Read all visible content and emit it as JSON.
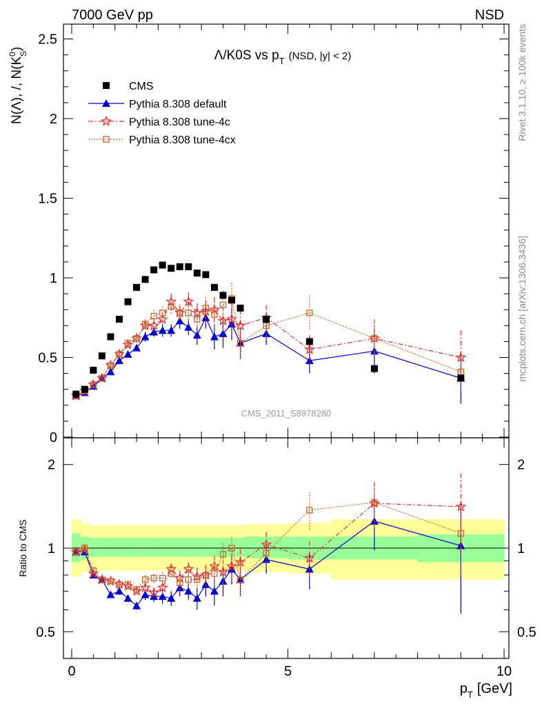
{
  "header": {
    "left": "7000 GeV pp",
    "right": "NSD"
  },
  "side_labels": {
    "rivet": "Rivet 3.1.10, ≥ 100k events",
    "mcplots": "mcplots.cern.ch [arXiv:1306.3436]"
  },
  "chart_data": [
    {
      "type": "scatter",
      "panel": "main",
      "title_main": "Λ/K0S vs p",
      "title_sub": "T",
      "title_extra": "(NSD, |y| < 2)",
      "ylabel_main": "N(Λ), /, N(K",
      "ylabel_sup": "0",
      "ylabel_sub": "S",
      "ylabel_end": ")",
      "watermark": "CMS_2011_S8978280",
      "xlim": [
        0,
        10
      ],
      "ylim": [
        0,
        2.6
      ],
      "yticks": [
        0,
        0.5,
        1,
        1.5,
        2,
        2.5
      ],
      "ytick_labels": [
        "0",
        "0.5",
        "1",
        "1.5",
        "2",
        "2.5"
      ],
      "series": [
        {
          "name": "CMS",
          "color": "#000000",
          "x": [
            0.1,
            0.3,
            0.5,
            0.7,
            0.9,
            1.1,
            1.3,
            1.5,
            1.7,
            1.9,
            2.1,
            2.3,
            2.5,
            2.7,
            2.9,
            3.1,
            3.3,
            3.5,
            3.7,
            3.9,
            4.5,
            5.5,
            7.0,
            9.0
          ],
          "y": [
            0.27,
            0.3,
            0.42,
            0.51,
            0.63,
            0.74,
            0.85,
            0.94,
            0.99,
            1.05,
            1.08,
            1.06,
            1.07,
            1.07,
            1.03,
            1.02,
            0.94,
            0.89,
            0.86,
            0.81,
            0.74,
            0.6,
            0.43,
            0.37
          ]
        },
        {
          "name": "Pythia 8.308 default",
          "color": "#0000cc",
          "x": [
            0.1,
            0.3,
            0.5,
            0.7,
            0.9,
            1.1,
            1.3,
            1.5,
            1.7,
            1.9,
            2.1,
            2.3,
            2.5,
            2.7,
            2.9,
            3.1,
            3.3,
            3.5,
            3.7,
            3.9,
            4.5,
            5.5,
            7.0,
            9.0
          ],
          "y": [
            0.26,
            0.28,
            0.32,
            0.37,
            0.41,
            0.48,
            0.52,
            0.56,
            0.63,
            0.66,
            0.67,
            0.67,
            0.73,
            0.69,
            0.64,
            0.75,
            0.63,
            0.65,
            0.71,
            0.59,
            0.65,
            0.48,
            0.54,
            0.37
          ],
          "err": [
            0.01,
            0.01,
            0.01,
            0.01,
            0.01,
            0.01,
            0.02,
            0.02,
            0.03,
            0.03,
            0.04,
            0.04,
            0.05,
            0.05,
            0.06,
            0.07,
            0.08,
            0.09,
            0.1,
            0.1,
            0.07,
            0.08,
            0.14,
            0.16
          ]
        },
        {
          "name": "Pythia 8.308 tune-4c",
          "color": "#e03030",
          "x": [
            0.1,
            0.3,
            0.5,
            0.7,
            0.9,
            1.1,
            1.3,
            1.5,
            1.7,
            1.9,
            2.1,
            2.3,
            2.5,
            2.7,
            2.9,
            3.1,
            3.3,
            3.5,
            3.7,
            3.9,
            4.5,
            5.5,
            7.0,
            9.0
          ],
          "y": [
            0.26,
            0.29,
            0.33,
            0.37,
            0.45,
            0.52,
            0.58,
            0.62,
            0.7,
            0.7,
            0.74,
            0.85,
            0.78,
            0.85,
            0.78,
            0.79,
            0.8,
            0.73,
            0.74,
            0.7,
            0.75,
            0.55,
            0.62,
            0.5
          ],
          "err": [
            0.01,
            0.01,
            0.01,
            0.01,
            0.01,
            0.02,
            0.02,
            0.03,
            0.03,
            0.04,
            0.04,
            0.05,
            0.05,
            0.06,
            0.06,
            0.07,
            0.08,
            0.09,
            0.1,
            0.1,
            0.08,
            0.09,
            0.12,
            0.17
          ]
        },
        {
          "name": "Pythia 8.308 tune-4cx",
          "color": "#c86428",
          "x": [
            0.1,
            0.3,
            0.5,
            0.7,
            0.9,
            1.1,
            1.3,
            1.5,
            1.7,
            1.9,
            2.1,
            2.3,
            2.5,
            2.7,
            2.9,
            3.1,
            3.3,
            3.5,
            3.7,
            3.9,
            4.5,
            5.5,
            7.0,
            9.0
          ],
          "y": [
            0.26,
            0.29,
            0.33,
            0.37,
            0.45,
            0.52,
            0.59,
            0.62,
            0.71,
            0.76,
            0.78,
            0.82,
            0.78,
            0.78,
            0.74,
            0.81,
            0.77,
            0.83,
            0.87,
            0.59,
            0.7,
            0.78,
            0.62,
            0.41
          ],
          "err": [
            0.01,
            0.01,
            0.01,
            0.01,
            0.01,
            0.02,
            0.02,
            0.03,
            0.03,
            0.04,
            0.04,
            0.05,
            0.05,
            0.06,
            0.06,
            0.07,
            0.08,
            0.09,
            0.1,
            0.1,
            0.08,
            0.11,
            0.1,
            0.12
          ]
        }
      ]
    },
    {
      "type": "scatter",
      "panel": "ratio",
      "ylabel": "Ratio to CMS",
      "xlabel": "p",
      "xlabel_sub": "T",
      "xlabel_unit": "[GeV]",
      "xlim": [
        0,
        10
      ],
      "xticks": [
        0,
        5,
        10
      ],
      "xtick_labels": [
        "0",
        "5",
        "10"
      ],
      "ylim": [
        0.4,
        2.4
      ],
      "yscale": "log",
      "yticks": [
        0.5,
        1,
        2
      ],
      "ytick_labels": [
        "0.5",
        "1",
        "2"
      ],
      "bands": {
        "x_edges": [
          0,
          0.2,
          0.4,
          0.6,
          0.8,
          1.0,
          1.2,
          1.4,
          1.6,
          1.8,
          2.0,
          2.2,
          2.4,
          2.6,
          2.8,
          3.0,
          3.2,
          3.4,
          3.6,
          3.8,
          4.0,
          5.0,
          6.0,
          8.0,
          10.0
        ],
        "inner_lo": [
          0.89,
          0.91,
          0.93,
          0.93,
          0.93,
          0.93,
          0.93,
          0.93,
          0.93,
          0.93,
          0.93,
          0.93,
          0.93,
          0.93,
          0.93,
          0.93,
          0.93,
          0.93,
          0.93,
          0.93,
          0.92,
          0.91,
          0.91,
          0.89
        ],
        "inner_hi": [
          1.13,
          1.1,
          1.09,
          1.09,
          1.09,
          1.09,
          1.09,
          1.09,
          1.09,
          1.09,
          1.09,
          1.09,
          1.09,
          1.09,
          1.09,
          1.09,
          1.09,
          1.09,
          1.09,
          1.09,
          1.1,
          1.1,
          1.1,
          1.12
        ],
        "outer_lo": [
          0.79,
          0.82,
          0.83,
          0.83,
          0.83,
          0.83,
          0.83,
          0.83,
          0.83,
          0.83,
          0.83,
          0.83,
          0.83,
          0.83,
          0.83,
          0.83,
          0.83,
          0.83,
          0.83,
          0.83,
          0.82,
          0.81,
          0.77,
          0.77
        ],
        "outer_hi": [
          1.27,
          1.23,
          1.21,
          1.21,
          1.21,
          1.21,
          1.21,
          1.21,
          1.21,
          1.21,
          1.21,
          1.21,
          1.21,
          1.21,
          1.21,
          1.21,
          1.21,
          1.21,
          1.21,
          1.21,
          1.22,
          1.23,
          1.27,
          1.27
        ]
      },
      "series": [
        {
          "name": "Pythia 8.308 default",
          "color": "#0000cc",
          "x": [
            0.1,
            0.3,
            0.5,
            0.7,
            0.9,
            1.1,
            1.3,
            1.5,
            1.7,
            1.9,
            2.1,
            2.3,
            2.5,
            2.7,
            2.9,
            3.1,
            3.3,
            3.5,
            3.7,
            3.9,
            4.5,
            5.5,
            7.0,
            9.0
          ],
          "y": [
            0.97,
            0.97,
            0.8,
            0.77,
            0.68,
            0.7,
            0.66,
            0.62,
            0.68,
            0.67,
            0.67,
            0.66,
            0.72,
            0.7,
            0.66,
            0.74,
            0.7,
            0.76,
            0.84,
            0.77,
            0.91,
            0.84,
            1.25,
            1.02
          ],
          "err": [
            0.01,
            0.01,
            0.01,
            0.01,
            0.01,
            0.02,
            0.02,
            0.02,
            0.03,
            0.03,
            0.04,
            0.04,
            0.05,
            0.05,
            0.06,
            0.07,
            0.08,
            0.09,
            0.1,
            0.1,
            0.1,
            0.13,
            0.27,
            0.44
          ]
        },
        {
          "name": "Pythia 8.308 tune-4c",
          "color": "#e03030",
          "x": [
            0.1,
            0.3,
            0.5,
            0.7,
            0.9,
            1.1,
            1.3,
            1.5,
            1.7,
            1.9,
            2.1,
            2.3,
            2.5,
            2.7,
            2.9,
            3.1,
            3.3,
            3.5,
            3.7,
            3.9,
            4.5,
            5.5,
            7.0,
            9.0
          ],
          "y": [
            0.97,
            0.99,
            0.81,
            0.77,
            0.76,
            0.74,
            0.73,
            0.7,
            0.72,
            0.69,
            0.72,
            0.84,
            0.78,
            0.84,
            0.79,
            0.8,
            0.86,
            0.82,
            0.86,
            0.89,
            1.03,
            0.92,
            1.45,
            1.41
          ],
          "err": [
            0.01,
            0.01,
            0.01,
            0.01,
            0.01,
            0.02,
            0.02,
            0.02,
            0.03,
            0.03,
            0.04,
            0.04,
            0.05,
            0.05,
            0.06,
            0.07,
            0.08,
            0.09,
            0.1,
            0.1,
            0.11,
            0.14,
            0.28,
            0.45
          ]
        },
        {
          "name": "Pythia 8.308 tune-4cx",
          "color": "#c86428",
          "x": [
            0.1,
            0.3,
            0.5,
            0.7,
            0.9,
            1.1,
            1.3,
            1.5,
            1.7,
            1.9,
            2.1,
            2.3,
            2.5,
            2.7,
            2.9,
            3.1,
            3.3,
            3.5,
            3.7,
            3.9,
            4.5,
            5.5,
            7.0,
            9.0
          ],
          "y": [
            0.97,
            1.0,
            0.83,
            0.77,
            0.76,
            0.74,
            0.74,
            0.71,
            0.77,
            0.78,
            0.78,
            0.81,
            0.75,
            0.77,
            0.77,
            0.8,
            0.81,
            0.95,
            1.0,
            0.77,
            0.96,
            1.37,
            1.46,
            1.13
          ],
          "err": [
            0.01,
            0.01,
            0.01,
            0.01,
            0.01,
            0.02,
            0.02,
            0.02,
            0.03,
            0.03,
            0.04,
            0.04,
            0.05,
            0.05,
            0.06,
            0.07,
            0.08,
            0.09,
            0.1,
            0.1,
            0.11,
            0.22,
            0.27,
            0.33
          ]
        }
      ]
    }
  ]
}
